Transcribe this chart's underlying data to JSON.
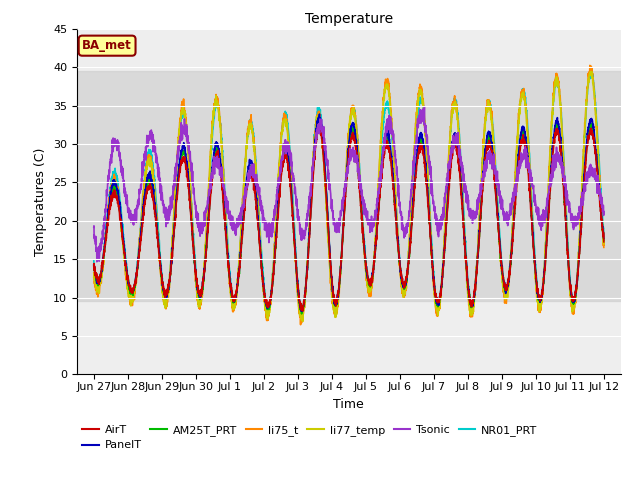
{
  "title": "Temperature",
  "xlabel": "Time",
  "ylabel": "Temperatures (C)",
  "ylim": [
    0,
    45
  ],
  "yticks": [
    0,
    5,
    10,
    15,
    20,
    25,
    30,
    35,
    40,
    45
  ],
  "annotation_text": "BA_met",
  "annotation_color": "#8B0000",
  "annotation_bg": "#FFFF99",
  "bg_band_lower": 9.5,
  "bg_band_upper": 39.5,
  "series": {
    "AirT": {
      "color": "#CC0000",
      "lw": 1.2
    },
    "PanelT": {
      "color": "#0000BB",
      "lw": 1.2
    },
    "AM25T_PRT": {
      "color": "#00BB00",
      "lw": 1.2
    },
    "li75_t": {
      "color": "#FF8800",
      "lw": 1.2
    },
    "li77_temp": {
      "color": "#CCCC00",
      "lw": 1.2
    },
    "Tsonic": {
      "color": "#9933CC",
      "lw": 1.2
    },
    "NR01_PRT": {
      "color": "#00CCCC",
      "lw": 1.2
    }
  },
  "legend_order": [
    "AirT",
    "PanelT",
    "AM25T_PRT",
    "li75_t",
    "li77_temp",
    "Tsonic",
    "NR01_PRT"
  ],
  "xtick_labels": [
    "Jun 27",
    "Jun 28",
    "Jun 29",
    "Jun 30",
    "Jul 1",
    "Jul 2",
    "Jul 3",
    "Jul 4",
    "Jul 5",
    "Jul 6",
    "Jul 7",
    "Jul 8",
    "Jul 9",
    "Jul 10",
    "Jul 11",
    "Jul 12"
  ],
  "xtick_positions": [
    0,
    1,
    2,
    3,
    4,
    5,
    6,
    7,
    8,
    9,
    10,
    11,
    12,
    13,
    14,
    15
  ],
  "xlim": [
    -0.5,
    15.5
  ]
}
